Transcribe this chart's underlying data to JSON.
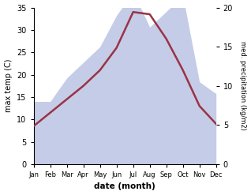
{
  "months": [
    "Jan",
    "Feb",
    "Mar",
    "Apr",
    "May",
    "Jun",
    "Jul",
    "Aug",
    "Sep",
    "Oct",
    "Nov",
    "Dec"
  ],
  "temp_max": [
    8.5,
    11.5,
    14.5,
    17.5,
    21.0,
    26.0,
    34.0,
    33.5,
    28.0,
    21.0,
    13.0,
    9.0
  ],
  "precip": [
    8.0,
    8.0,
    11.0,
    13.0,
    15.0,
    19.0,
    22.0,
    17.5,
    19.5,
    21.5,
    10.5,
    9.0
  ],
  "temp_color": "#993344",
  "precip_fill_color": "#c5cce8",
  "xlabel": "date (month)",
  "ylabel_left": "max temp (C)",
  "ylabel_right": "med. precipitation (kg/m2)",
  "ylim_left": [
    0,
    35
  ],
  "ylim_right": [
    0,
    35
  ],
  "yticks_left": [
    0,
    5,
    10,
    15,
    20,
    25,
    30,
    35
  ],
  "yticks_right_vals": [
    0,
    5,
    10,
    15,
    20
  ],
  "yticks_right_labels": [
    "0",
    "5",
    "10",
    "15",
    "20"
  ],
  "temp_linewidth": 1.8,
  "background_color": "#ffffff"
}
